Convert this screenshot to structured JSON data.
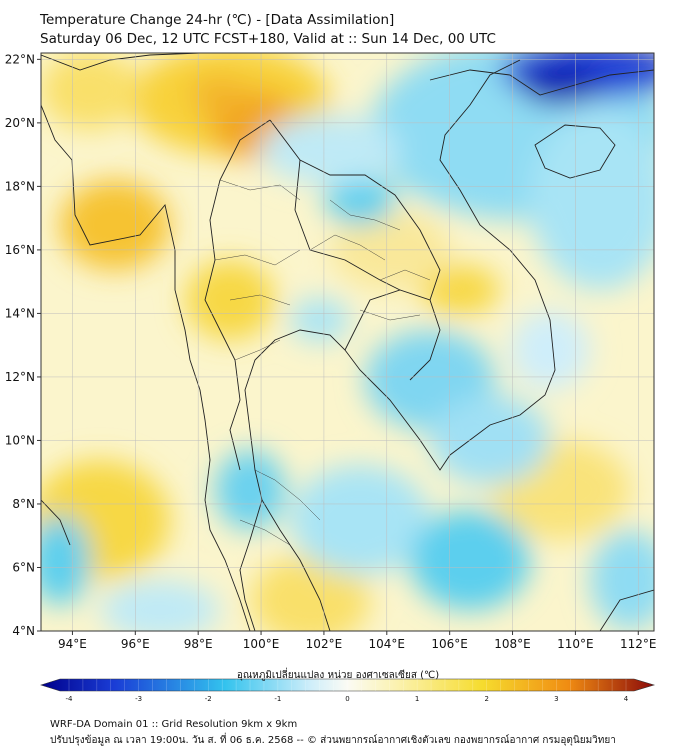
{
  "header": {
    "title_line1": "Temperature Change 24-hr (℃) - [Data Assimilation]",
    "title_line2": "Saturday 06 Dec, 12 UTC FCST+180, Valid at :: Sun 14 Dec, 00 UTC"
  },
  "map": {
    "lon_range": [
      93,
      112.5
    ],
    "lat_range": [
      4,
      22.2
    ],
    "lat_ticks": [
      {
        "value": 22,
        "label": "22°N"
      },
      {
        "value": 20,
        "label": "20°N"
      },
      {
        "value": 18,
        "label": "18°N"
      },
      {
        "value": 16,
        "label": "16°N"
      },
      {
        "value": 14,
        "label": "14°N"
      },
      {
        "value": 12,
        "label": "12°N"
      },
      {
        "value": 10,
        "label": "10°N"
      },
      {
        "value": 8,
        "label": "8°N"
      },
      {
        "value": 6,
        "label": "6°N"
      },
      {
        "value": 4,
        "label": "4°N"
      }
    ],
    "lon_ticks": [
      {
        "value": 94,
        "label": "94°E"
      },
      {
        "value": 96,
        "label": "96°E"
      },
      {
        "value": 98,
        "label": "98°E"
      },
      {
        "value": 100,
        "label": "100°E"
      },
      {
        "value": 102,
        "label": "102°E"
      },
      {
        "value": 104,
        "label": "104°E"
      },
      {
        "value": 106,
        "label": "106°E"
      },
      {
        "value": 108,
        "label": "108°E"
      },
      {
        "value": 110,
        "label": "110°E"
      },
      {
        "value": 112,
        "label": "112°E"
      }
    ],
    "grid": true
  },
  "colorbar": {
    "label": "อุณหภูมิเปลี่ยนแปลง หน่วย องศาเซลเซียส (℃)",
    "min": -4,
    "max": 4,
    "ticks": [
      "-4",
      "-3",
      "-2",
      "-1",
      "0",
      "1",
      "2",
      "3",
      "4"
    ],
    "colors": {
      "cold_max": "#00008b",
      "cold": "#1a3dd6",
      "cool": "#33c3ee",
      "light_cool": "#cfeefa",
      "neutral": "#fbfbf4",
      "light_warm": "#fbf2b0",
      "warm": "#f6dc2e",
      "hot": "#f08c12",
      "hot_max": "#8b0a0a"
    }
  },
  "footer": {
    "line1": "WRF-DA Domain 01 :: Grid Resolution 9km x 9km",
    "line2": "ปรับปรุงข้อมูล ณ เวลา 19:00น. วัน ส. ที่ 06 ธ.ค. 2568 -- © ส่วนพยากรณ์อากาศเชิงตัวเลข กองพยากรณ์อากาศ กรมอุตุนิยมวิทยา"
  }
}
